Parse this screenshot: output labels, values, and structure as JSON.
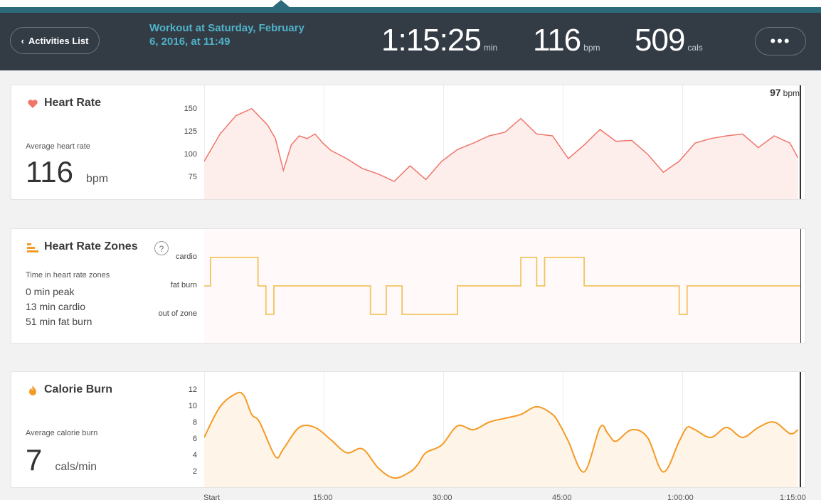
{
  "header": {
    "back_label": "Activities List",
    "workout_title": "Workout at Saturday, February 6, 2016, at 11:49",
    "duration": "1:15:25",
    "duration_unit": "min",
    "avg_hr": "116",
    "avg_hr_unit": "bpm",
    "calories": "509",
    "calories_unit": "cals",
    "more_label": "•••"
  },
  "heart_rate": {
    "title": "Heart Rate",
    "avg_label": "Average heart rate",
    "avg_value": "116",
    "avg_unit": "bpm",
    "cursor_value": "97",
    "cursor_unit": "bpm",
    "y_ticks": [
      "150",
      "125",
      "100",
      "75"
    ],
    "color": "#f0756a"
  },
  "zones": {
    "title": "Heart Rate Zones",
    "help_label": "?",
    "time_label": "Time in heart rate zones",
    "peak": "0 min peak",
    "cardio": "13 min cardio",
    "fat_burn": "51 min fat burn",
    "y_ticks": [
      "cardio",
      "fat burn",
      "out of zone"
    ],
    "color": "#f2c360"
  },
  "calories": {
    "title": "Calorie Burn",
    "avg_label": "Average calorie burn",
    "avg_value": "7",
    "avg_unit": "cals/min",
    "y_ticks": [
      "12",
      "10",
      "8",
      "6",
      "4",
      "2"
    ],
    "color": "#f59a25"
  },
  "x_axis": [
    "Start",
    "15:00",
    "30:00",
    "45:00",
    "1:00:00",
    "1:15:00"
  ],
  "chart_data": [
    {
      "type": "line",
      "title": "Heart Rate",
      "xlabel": "",
      "ylabel": "bpm",
      "ylim": [
        60,
        160
      ],
      "x": [
        0,
        2,
        4,
        6,
        8,
        9,
        10,
        11,
        12,
        13,
        14,
        15,
        16,
        18,
        20,
        22,
        24,
        26,
        28,
        30,
        32,
        34,
        36,
        38,
        40,
        42,
        44,
        46,
        48,
        50,
        52,
        54,
        56,
        58,
        60,
        62,
        64,
        66,
        68,
        70,
        72,
        74,
        75
      ],
      "values": [
        100,
        130,
        150,
        158,
        140,
        125,
        90,
        118,
        128,
        125,
        130,
        120,
        112,
        103,
        92,
        86,
        78,
        95,
        80,
        100,
        113,
        120,
        128,
        132,
        147,
        130,
        128,
        103,
        118,
        135,
        122,
        123,
        108,
        88,
        100,
        120,
        125,
        128,
        130,
        115,
        128,
        120,
        104
      ]
    },
    {
      "type": "line",
      "title": "Heart Rate Zones",
      "categories": [
        "out of zone",
        "fat burn",
        "cardio"
      ],
      "x": [
        0,
        0.8,
        6.8,
        7.8,
        8.8,
        21,
        23,
        25,
        32,
        40,
        42,
        43,
        48,
        60,
        61,
        75
      ],
      "values": [
        "fat burn",
        "cardio",
        "fat burn",
        "out of zone",
        "fat burn",
        "out of zone",
        "fat burn",
        "out of zone",
        "fat burn",
        "cardio",
        "fat burn",
        "cardio",
        "fat burn",
        "out of zone",
        "fat burn",
        "fat burn"
      ]
    },
    {
      "type": "area",
      "title": "Calorie Burn",
      "xlabel": "",
      "ylabel": "cals/min",
      "ylim": [
        0,
        13
      ],
      "x": [
        0,
        2,
        4,
        5,
        6,
        7,
        9,
        10,
        12,
        14,
        16,
        18,
        20,
        22,
        24,
        26,
        27,
        28,
        30,
        32,
        34,
        36,
        38,
        40,
        42,
        44,
        45,
        46,
        48,
        50,
        51,
        52,
        54,
        56,
        58,
        60,
        61,
        62,
        64,
        66,
        68,
        70,
        72,
        74,
        75
      ],
      "values": [
        6.5,
        10.5,
        12.2,
        12,
        9.5,
        8.5,
        4,
        5,
        7.8,
        7.8,
        6.2,
        4.5,
        5,
        2.5,
        1.2,
        2,
        3,
        4.5,
        5.5,
        8,
        7.5,
        8.5,
        9,
        9.5,
        10.5,
        9.5,
        8,
        6,
        2,
        7.8,
        7,
        6,
        7.5,
        6.5,
        2,
        6,
        7.8,
        7.5,
        6.5,
        7.8,
        6.5,
        7.8,
        8.5,
        7,
        7.5
      ]
    }
  ]
}
